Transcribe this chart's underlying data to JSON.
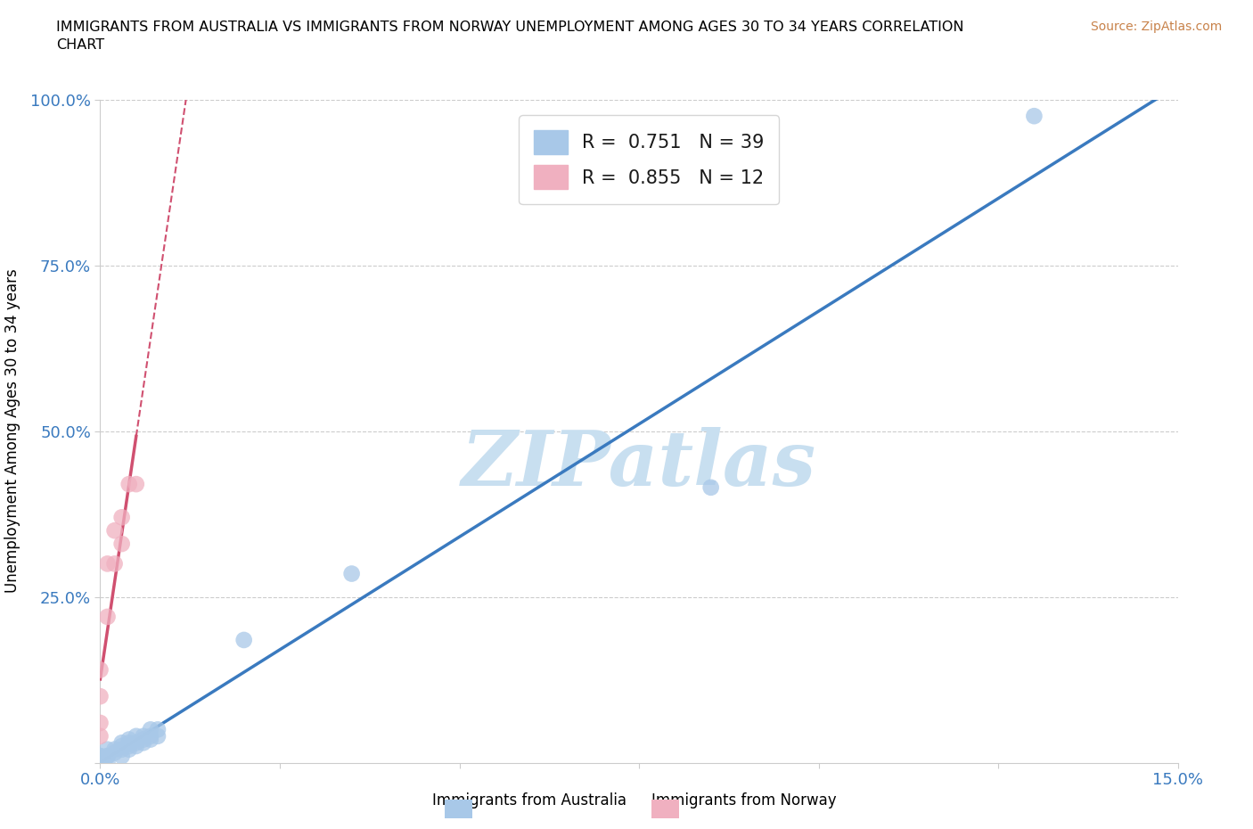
{
  "title": "IMMIGRANTS FROM AUSTRALIA VS IMMIGRANTS FROM NORWAY UNEMPLOYMENT AMONG AGES 30 TO 34 YEARS CORRELATION\nCHART",
  "source": "Source: ZipAtlas.com",
  "ylabel": "Unemployment Among Ages 30 to 34 years",
  "xlim": [
    0.0,
    0.15
  ],
  "ylim": [
    0.0,
    1.0
  ],
  "xtick_vals": [
    0.0,
    0.025,
    0.05,
    0.075,
    0.1,
    0.125,
    0.15
  ],
  "xtick_labels": [
    "0.0%",
    "",
    "",
    "",
    "",
    "",
    "15.0%"
  ],
  "ytick_vals": [
    0.0,
    0.25,
    0.5,
    0.75,
    1.0
  ],
  "ytick_labels": [
    "",
    "25.0%",
    "50.0%",
    "75.0%",
    "100.0%"
  ],
  "legend_australia": "Immigrants from Australia",
  "legend_norway": "Immigrants from Norway",
  "R_australia": 0.751,
  "N_australia": 39,
  "R_norway": 0.855,
  "N_norway": 12,
  "color_australia": "#a8c8e8",
  "color_norway": "#f0b0c0",
  "line_australia": "#3a7abf",
  "line_norway": "#d05070",
  "tick_color": "#3a7abf",
  "watermark_text": "ZIPatlas",
  "watermark_color": "#c8dff0",
  "australia_x": [
    0.0,
    0.0,
    0.0,
    0.0,
    0.0,
    0.0,
    0.0,
    0.0,
    0.0,
    0.0,
    0.001,
    0.001,
    0.001,
    0.001,
    0.002,
    0.002,
    0.003,
    0.003,
    0.003,
    0.003,
    0.004,
    0.004,
    0.004,
    0.004,
    0.005,
    0.005,
    0.005,
    0.006,
    0.006,
    0.006,
    0.007,
    0.007,
    0.007,
    0.008,
    0.008,
    0.02,
    0.035,
    0.085,
    0.13
  ],
  "australia_y": [
    0.0,
    0.0,
    0.0,
    0.0,
    0.0,
    0.0,
    0.0,
    0.005,
    0.01,
    0.01,
    0.0,
    0.01,
    0.01,
    0.02,
    0.015,
    0.02,
    0.01,
    0.02,
    0.025,
    0.03,
    0.02,
    0.025,
    0.03,
    0.035,
    0.025,
    0.03,
    0.04,
    0.03,
    0.035,
    0.04,
    0.035,
    0.04,
    0.05,
    0.04,
    0.05,
    0.185,
    0.285,
    0.415,
    0.975
  ],
  "norway_x": [
    0.0,
    0.0,
    0.0,
    0.0,
    0.001,
    0.001,
    0.002,
    0.002,
    0.003,
    0.003,
    0.004,
    0.005
  ],
  "norway_y": [
    0.04,
    0.06,
    0.1,
    0.14,
    0.22,
    0.3,
    0.3,
    0.35,
    0.33,
    0.37,
    0.42,
    0.42
  ]
}
